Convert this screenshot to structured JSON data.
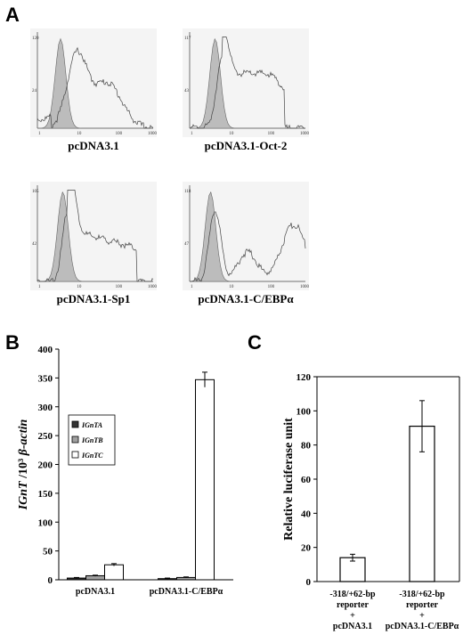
{
  "panels": {
    "a": "A",
    "b": "B",
    "c": "C"
  },
  "histograms": {
    "axis_ticks_x": [
      "1",
      "10",
      "100",
      "1000"
    ],
    "items": [
      {
        "label": "pcDNA3.1",
        "ytop": "120",
        "ymid": "24"
      },
      {
        "label": "pcDNA3.1-Oct-2",
        "ytop": "117",
        "ymid": "43"
      },
      {
        "label": "pcDNA3.1-Sp1",
        "ytop": "105",
        "ymid": "42"
      },
      {
        "label": "pcDNA3.1-C/EBPα",
        "ytop": "118",
        "ymid": "47"
      }
    ]
  },
  "chart_data": [
    {
      "type": "bar",
      "ylabel_italic": "IGnT",
      "ylabel_rest": " /10³ ",
      "ylabel_italic2": "β-actin",
      "ylim": [
        0,
        400
      ],
      "yticks": [
        0,
        50,
        100,
        150,
        200,
        250,
        300,
        350,
        400
      ],
      "categories": [
        "pcDNA3.1",
        "pcDNA3.1-C/EBPα"
      ],
      "series": [
        {
          "name": "IGnTA",
          "values": [
            3,
            2
          ],
          "errors": [
            1,
            1
          ],
          "color": "#333333"
        },
        {
          "name": "IGnTB",
          "values": [
            7,
            4
          ],
          "errors": [
            1,
            1
          ],
          "color": "#a0a0a0"
        },
        {
          "name": "IGnTC",
          "values": [
            26,
            347
          ],
          "errors": [
            2,
            13
          ],
          "color": "#ffffff"
        }
      ],
      "legend": "top-left"
    },
    {
      "type": "bar",
      "ylabel": "Relative luciferase unit",
      "ylim": [
        0,
        120
      ],
      "yticks": [
        0,
        20,
        40,
        60,
        80,
        100,
        120
      ],
      "categories": [
        [
          "-318/+62-bp",
          "reporter",
          "+",
          "pcDNA3.1"
        ],
        [
          "-318/+62-bp",
          "reporter",
          "+",
          "pcDNA3.1-C/EBPα"
        ]
      ],
      "values": [
        14,
        91
      ],
      "errors": [
        2,
        15
      ]
    }
  ]
}
